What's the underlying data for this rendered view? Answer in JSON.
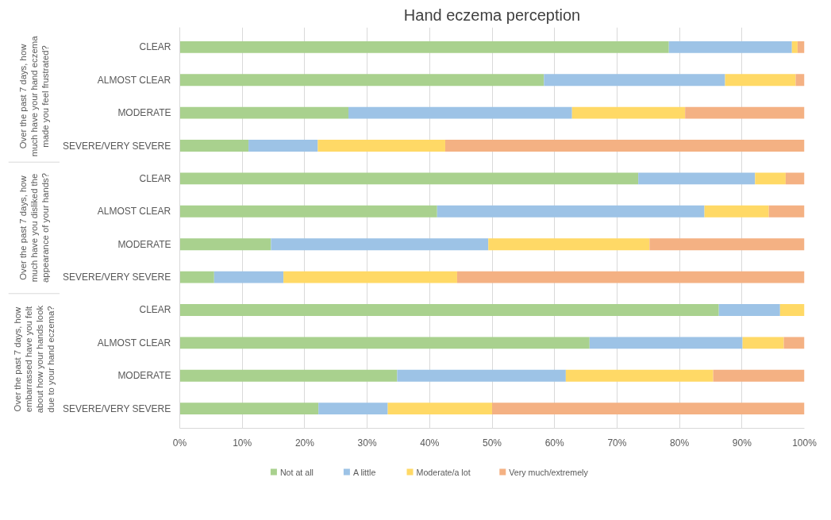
{
  "chart_data": {
    "type": "bar",
    "orientation": "horizontal",
    "stacked": true,
    "title": "Hand eczema perception",
    "categories": [
      "CLEAR",
      "ALMOST CLEAR",
      "MODERATE",
      "SEVERE/VERY SEVERE",
      "CLEAR",
      "ALMOST CLEAR",
      "MODERATE",
      "SEVERE/VERY SEVERE",
      "CLEAR",
      "ALMOST CLEAR",
      "MODERATE",
      "SEVERE/VERY SEVERE"
    ],
    "series": [
      {
        "name": "Not at all",
        "color": "#a9d18e",
        "values": [
          78.3,
          58.3,
          27.0,
          11.0,
          73.4,
          41.2,
          14.6,
          5.5,
          86.3,
          65.6,
          34.8,
          22.2
        ]
      },
      {
        "name": "A little",
        "color": "#9dc3e6",
        "values": [
          19.7,
          29.0,
          35.8,
          11.1,
          18.7,
          42.8,
          34.8,
          11.1,
          9.8,
          24.5,
          27.0,
          11.1
        ]
      },
      {
        "name": "Moderate/a lot",
        "color": "#ffd966",
        "values": [
          0.9,
          11.3,
          18.1,
          20.4,
          4.9,
          10.3,
          25.8,
          27.8,
          3.9,
          6.6,
          23.6,
          16.7
        ]
      },
      {
        "name": "Very much/extremely",
        "color": "#f4b183",
        "values": [
          1.1,
          1.4,
          19.1,
          57.5,
          3.0,
          5.7,
          24.8,
          55.6,
          0.0,
          3.3,
          14.6,
          50.0
        ]
      }
    ],
    "annotations": [
      "Over the past 7 days, how much have your hand eczema made you feel frustrated?",
      "Over the past 7 days, how much have you disliked the appearance of your hands?",
      "Over the past 7 days, how embarrassed have you felt about how your hands look due to your hand eczema?"
    ],
    "xlim": [
      0,
      100
    ],
    "xticks": [
      {
        "value": 0,
        "label": "0%"
      },
      {
        "value": 10,
        "label": "10%"
      },
      {
        "value": 20,
        "label": "20%"
      },
      {
        "value": 30,
        "label": "30%"
      },
      {
        "value": 40,
        "label": "40%"
      },
      {
        "value": 50,
        "label": "50%"
      },
      {
        "value": 60,
        "label": "60%"
      },
      {
        "value": 70,
        "label": "70%"
      },
      {
        "value": 80,
        "label": "80%"
      },
      {
        "value": 90,
        "label": "90%"
      },
      {
        "value": 100,
        "label": "100%"
      }
    ],
    "grid": "x",
    "legend": "bottom"
  }
}
